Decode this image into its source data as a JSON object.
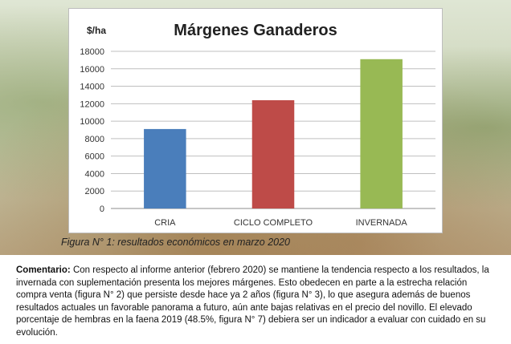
{
  "chart_data": {
    "type": "bar",
    "title": "Márgenes Ganaderos",
    "unit_label": "$/ha",
    "categories": [
      "CRIA",
      "CICLO COMPLETO",
      "INVERNADA"
    ],
    "values": [
      9100,
      12400,
      17100
    ],
    "colors": [
      "#4a7ebb",
      "#be4b48",
      "#98b954"
    ],
    "ylim": [
      0,
      18000
    ],
    "yticks": [
      "0",
      "2000",
      "4000",
      "6000",
      "8000",
      "10000",
      "12000",
      "14000",
      "16000",
      "18000"
    ],
    "grid": true,
    "legend": "none"
  },
  "caption": "Figura N° 1: resultados económicos en marzo 2020",
  "comment": {
    "label": "Comentario:",
    "text": "Con respecto al informe anterior (febrero 2020) se mantiene la tendencia respecto a los resultados, la invernada con suplementación presenta los mejores márgenes. Esto obedecen en parte a la estrecha relación compra venta (figura N° 2) que persiste desde hace ya 2 años (figura N° 3), lo que asegura además de buenos resultados actuales un favorable panorama a futuro, aún ante bajas relativas en el precio del novillo. El elevado porcentaje de hembras en la faena 2019 (48.5%, figura N° 7) debiera ser un indicador a evaluar con cuidado en su evolución."
  }
}
